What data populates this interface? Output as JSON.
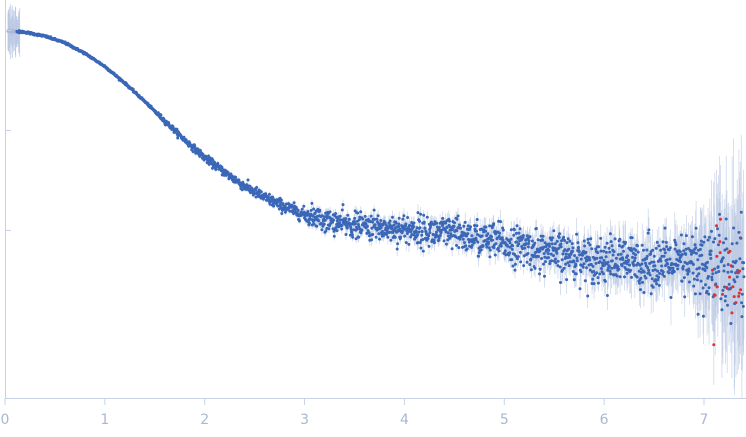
{
  "chart_data": {
    "type": "scatter",
    "title": "",
    "xlabel": "",
    "ylabel": "",
    "xlim": [
      0,
      7.42
    ],
    "x_ticks": [
      0,
      1,
      2,
      3,
      4,
      5,
      6,
      7
    ],
    "y_tick_count": 3,
    "y_scale": "log",
    "grid": false,
    "legend": "none",
    "colors": {
      "points": "#3a67b7",
      "error_bars": "#b9c8e2",
      "outlier_points": "#e0303a",
      "axis": "#c8d2e4",
      "tick_labels": "#a9b8d2"
    },
    "series": [
      {
        "values_description_points": [
          [
            0.05,
            1.0
          ],
          [
            0.2,
            0.99
          ],
          [
            0.4,
            0.955
          ],
          [
            0.6,
            0.9
          ],
          [
            0.8,
            0.82
          ],
          [
            1.0,
            0.73
          ],
          [
            1.2,
            0.63
          ],
          [
            1.4,
            0.535
          ],
          [
            1.6,
            0.45
          ],
          [
            1.8,
            0.38
          ],
          [
            2.0,
            0.325
          ],
          [
            2.2,
            0.285
          ],
          [
            2.4,
            0.252
          ],
          [
            2.6,
            0.228
          ],
          [
            2.8,
            0.21
          ],
          [
            3.0,
            0.196
          ],
          [
            3.2,
            0.186
          ],
          [
            3.5,
            0.178
          ],
          [
            4.0,
            0.172
          ],
          [
            4.5,
            0.165
          ],
          [
            5.0,
            0.152
          ],
          [
            5.5,
            0.138
          ],
          [
            6.0,
            0.13
          ],
          [
            6.5,
            0.127
          ],
          [
            7.0,
            0.124
          ],
          [
            7.4,
            0.122
          ]
        ]
      }
    ]
  }
}
